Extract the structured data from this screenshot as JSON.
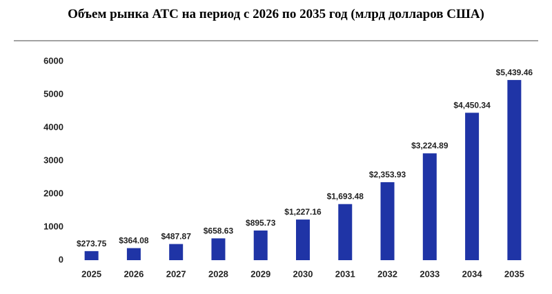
{
  "chart_data": {
    "type": "bar",
    "title": "Объем рынка АТС на период с 2026 по 2035 год (млрд долларов США)",
    "categories": [
      "2025",
      "2026",
      "2027",
      "2028",
      "2029",
      "2030",
      "2031",
      "2032",
      "2033",
      "2034",
      "2035"
    ],
    "values": [
      273.75,
      364.08,
      487.87,
      658.63,
      895.73,
      1227.16,
      1693.48,
      2353.93,
      3224.89,
      4450.34,
      5439.46
    ],
    "value_labels": [
      "$273.75",
      "$364.08",
      "$487.87",
      "$658.63",
      "$895.73",
      "$1,227.16",
      "$1,693.48",
      "$2,353.93",
      "$3,224.89",
      "$4,450.34",
      "$5,439.46"
    ],
    "color": "#1f34a6",
    "ylim": [
      0,
      6000
    ],
    "yticks": [
      0,
      1000,
      2000,
      3000,
      4000,
      5000,
      6000
    ],
    "grid": false
  }
}
